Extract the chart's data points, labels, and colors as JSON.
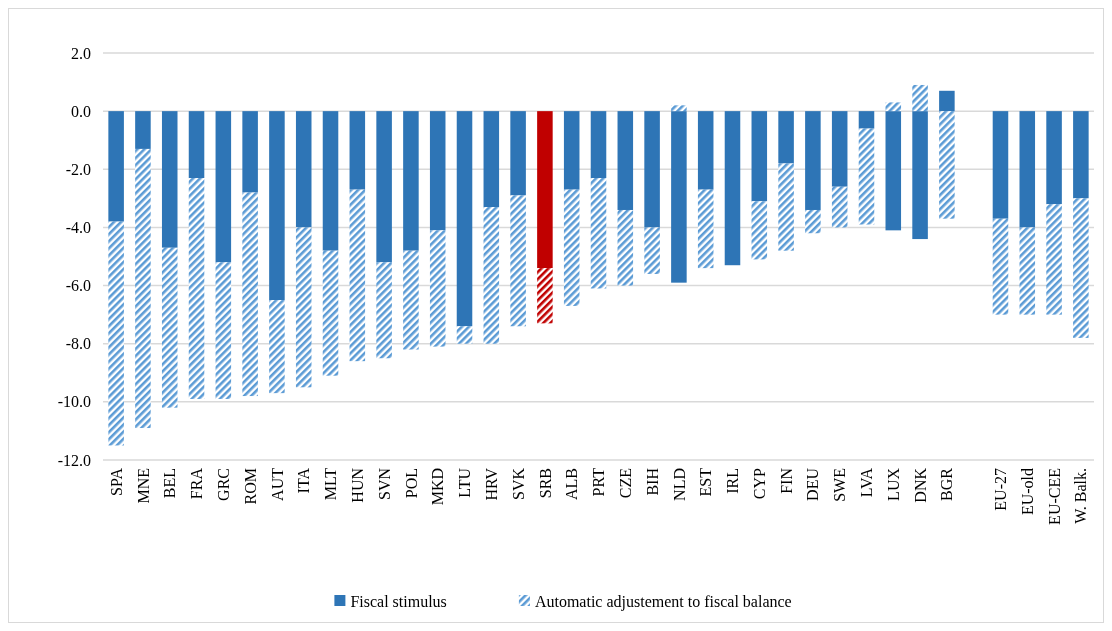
{
  "chart_data": {
    "type": "bar",
    "stacked": true,
    "categories": [
      "SPA",
      "MNE",
      "BEL",
      "FRA",
      "GRC",
      "ROM",
      "AUT",
      "ITA",
      "MLT",
      "HUN",
      "SVN",
      "POL",
      "MKD",
      "LTU",
      "HRV",
      "SVK",
      "SRB",
      "ALB",
      "PRT",
      "CZE",
      "BIH",
      "NLD",
      "EST",
      "IRL",
      "CYP",
      "FIN",
      "DEU",
      "SWE",
      "LVA",
      "LUX",
      "DNK",
      "BGR",
      null,
      "EU-27",
      "EU-old",
      "EU-CEE",
      "W. Balk."
    ],
    "series": [
      {
        "name": "Fiscal stimulus",
        "color": "#2e75b6",
        "colors": [
          "#2e75b6",
          "#2e75b6",
          "#2e75b6",
          "#2e75b6",
          "#2e75b6",
          "#2e75b6",
          "#2e75b6",
          "#2e75b6",
          "#2e75b6",
          "#2e75b6",
          "#2e75b6",
          "#2e75b6",
          "#2e75b6",
          "#2e75b6",
          "#2e75b6",
          "#2e75b6",
          "#c00000",
          "#2e75b6",
          "#2e75b6",
          "#2e75b6",
          "#2e75b6",
          "#2e75b6",
          "#2e75b6",
          "#2e75b6",
          "#2e75b6",
          "#2e75b6",
          "#2e75b6",
          "#2e75b6",
          "#2e75b6",
          "#2e75b6",
          "#2e75b6",
          "#2e75b6",
          "#2e75b6",
          "#2e75b6",
          "#2e75b6",
          "#2e75b6",
          "#2e75b6"
        ],
        "values": [
          -3.8,
          -1.3,
          -4.7,
          -2.3,
          -5.2,
          -2.8,
          -6.5,
          -4.0,
          -4.8,
          -2.7,
          -5.2,
          -4.8,
          -4.1,
          -7.4,
          -3.3,
          -2.9,
          -5.4,
          -2.7,
          -2.3,
          -3.4,
          -4.0,
          -5.9,
          -2.7,
          -5.3,
          -3.1,
          -1.8,
          -3.4,
          -2.6,
          -0.6,
          -4.1,
          -4.4,
          0.7,
          null,
          -3.7,
          -4.0,
          -3.2,
          -3.0
        ]
      },
      {
        "name": "Automatic adjustement to fiscal balance",
        "color": "#5b9bd5",
        "colors": [
          "#5b9bd5",
          "#5b9bd5",
          "#5b9bd5",
          "#5b9bd5",
          "#5b9bd5",
          "#5b9bd5",
          "#5b9bd5",
          "#5b9bd5",
          "#5b9bd5",
          "#5b9bd5",
          "#5b9bd5",
          "#5b9bd5",
          "#5b9bd5",
          "#5b9bd5",
          "#5b9bd5",
          "#5b9bd5",
          "#c00000",
          "#5b9bd5",
          "#5b9bd5",
          "#5b9bd5",
          "#5b9bd5",
          "#5b9bd5",
          "#5b9bd5",
          "#5b9bd5",
          "#5b9bd5",
          "#5b9bd5",
          "#5b9bd5",
          "#5b9bd5",
          "#5b9bd5",
          "#5b9bd5",
          "#5b9bd5",
          "#5b9bd5",
          "#5b9bd5",
          "#5b9bd5",
          "#5b9bd5",
          "#5b9bd5",
          "#5b9bd5"
        ],
        "values": [
          -7.7,
          -9.6,
          -5.5,
          -7.6,
          -4.7,
          -7.0,
          -3.2,
          -5.5,
          -4.3,
          -5.9,
          -3.3,
          -3.4,
          -4.0,
          -0.6,
          -4.7,
          -4.5,
          -1.9,
          -4.0,
          -3.8,
          -2.6,
          -1.6,
          0.2,
          -2.7,
          null,
          -2.0,
          -3.0,
          -0.8,
          -1.4,
          -3.3,
          0.3,
          0.9,
          -3.7,
          null,
          -3.3,
          -3.0,
          -3.8,
          -4.8
        ]
      }
    ],
    "ylim": [
      -12,
      2
    ],
    "yticks": [
      {
        "value": 2,
        "label": "2.0"
      },
      {
        "value": 0,
        "label": "0.0"
      },
      {
        "value": -2,
        "label": "-2.0"
      },
      {
        "value": -4,
        "label": "-4.0"
      },
      {
        "value": -6,
        "label": "-6.0"
      },
      {
        "value": -8,
        "label": "-8.0"
      },
      {
        "value": -10,
        "label": "-10.0"
      },
      {
        "value": -12,
        "label": "-12.0"
      }
    ],
    "grid": "y",
    "legend": "bottom"
  }
}
